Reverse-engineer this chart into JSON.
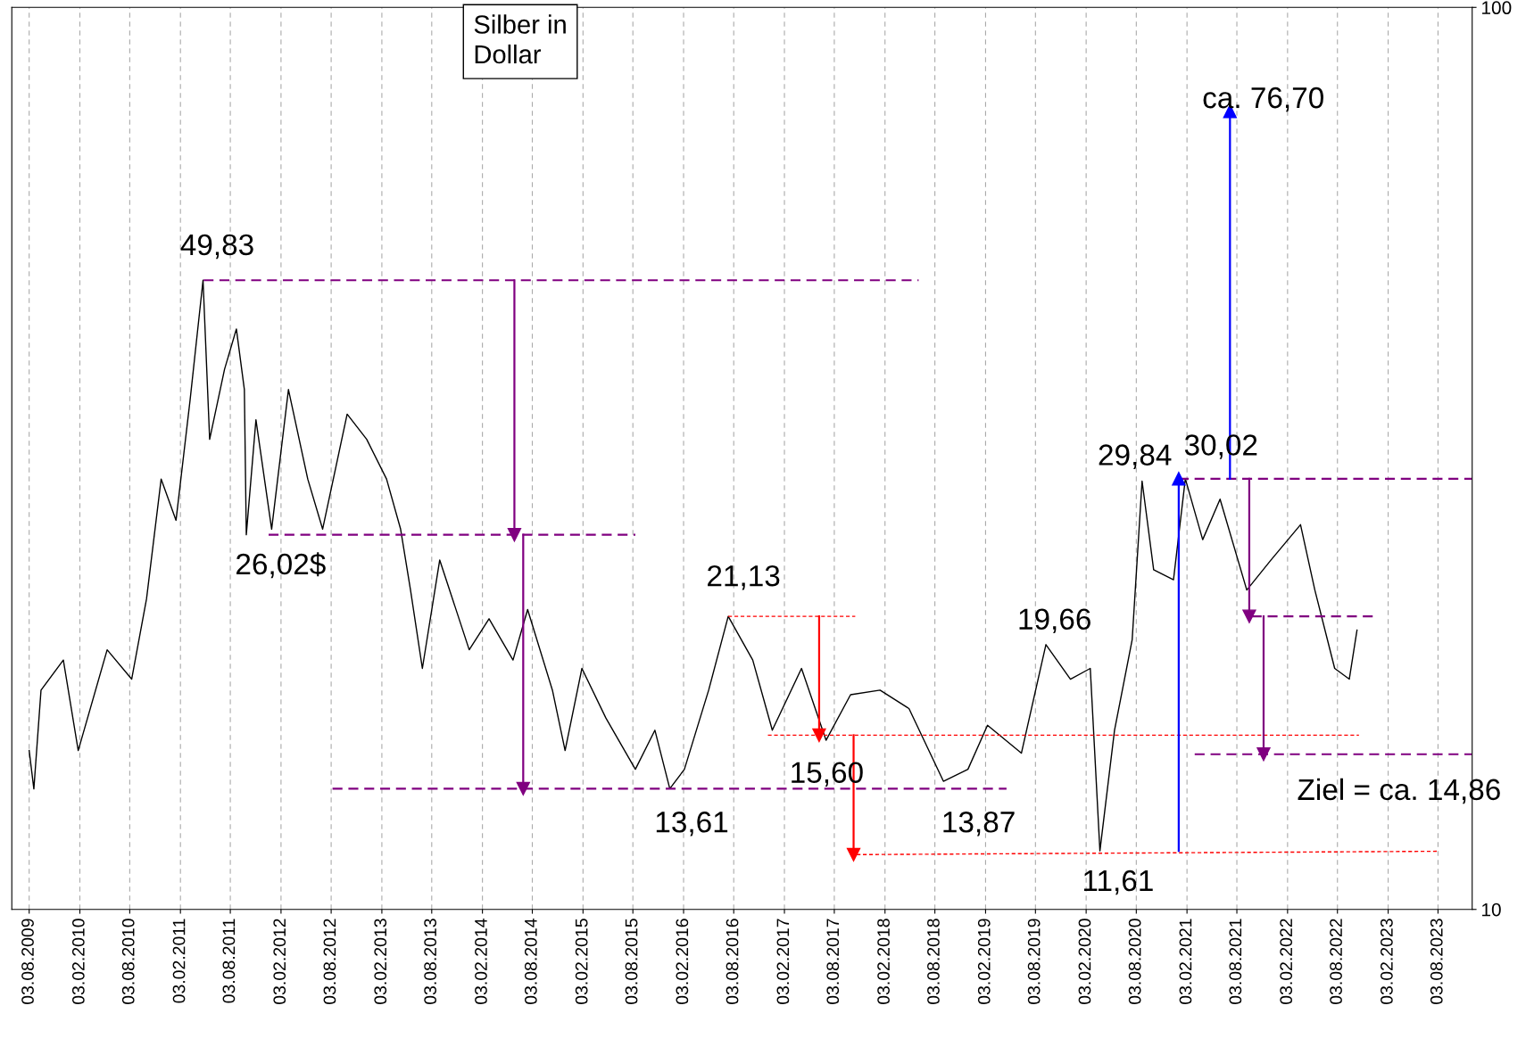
{
  "chart_data": {
    "type": "line",
    "title": "Silber in\nDollar",
    "log": "y",
    "grid": "x",
    "xlim": [
      "2009-06-01",
      "2023-12-05"
    ],
    "ylim": [
      10,
      100
    ],
    "yticks": [
      10,
      100
    ],
    "xticks": [
      {
        "value": "2009-08-03",
        "label": "03.08.2009"
      },
      {
        "value": "2010-02-03",
        "label": "03.02.2010"
      },
      {
        "value": "2010-08-03",
        "label": "03.08.2010"
      },
      {
        "value": "2011-02-03",
        "label": "03.02.2011"
      },
      {
        "value": "2011-08-03",
        "label": "03.08.2011"
      },
      {
        "value": "2012-02-03",
        "label": "03.02.2012"
      },
      {
        "value": "2012-08-03",
        "label": "03.08.2012"
      },
      {
        "value": "2013-02-03",
        "label": "03.02.2013"
      },
      {
        "value": "2013-08-03",
        "label": "03.08.2013"
      },
      {
        "value": "2014-02-03",
        "label": "03.02.2014"
      },
      {
        "value": "2014-08-03",
        "label": "03.08.2014"
      },
      {
        "value": "2015-02-03",
        "label": "03.02.2015"
      },
      {
        "value": "2015-08-03",
        "label": "03.08.2015"
      },
      {
        "value": "2016-02-03",
        "label": "03.02.2016"
      },
      {
        "value": "2016-08-03",
        "label": "03.08.2016"
      },
      {
        "value": "2017-02-03",
        "label": "03.02.2017"
      },
      {
        "value": "2017-08-03",
        "label": "03.08.2017"
      },
      {
        "value": "2018-02-03",
        "label": "03.02.2018"
      },
      {
        "value": "2018-08-03",
        "label": "03.08.2018"
      },
      {
        "value": "2019-02-03",
        "label": "03.02.2019"
      },
      {
        "value": "2019-08-03",
        "label": "03.08.2019"
      },
      {
        "value": "2020-02-03",
        "label": "03.02.2020"
      },
      {
        "value": "2020-08-03",
        "label": "03.08.2020"
      },
      {
        "value": "2021-02-03",
        "label": "03.02.2021"
      },
      {
        "value": "2021-08-03",
        "label": "03.08.2021"
      },
      {
        "value": "2022-02-03",
        "label": "03.02.2022"
      },
      {
        "value": "2022-08-03",
        "label": "03.08.2022"
      },
      {
        "value": "2023-02-03",
        "label": "03.02.2023"
      },
      {
        "value": "2023-08-03",
        "label": "03.08.2023"
      }
    ],
    "series": [
      {
        "color": "#000000",
        "line_style": "solid",
        "x": [
          "2009-08-03",
          "2009-08-20",
          "2009-09-15",
          "2009-12-05",
          "2010-01-28",
          "2010-05-13",
          "2010-08-10",
          "2010-10-03",
          "2010-11-25",
          "2011-01-18",
          "2011-03-10",
          "2011-04-26",
          "2011-05-20",
          "2011-07-13",
          "2011-08-25",
          "2011-09-23",
          "2011-09-30",
          "2011-11-04",
          "2011-12-31",
          "2012-03-01",
          "2012-05-10",
          "2012-07-03",
          "2012-09-30",
          "2012-12-10",
          "2013-02-20",
          "2013-04-12",
          "2013-05-18",
          "2013-06-30",
          "2013-09-01",
          "2013-12-17",
          "2014-02-27",
          "2014-05-25",
          "2014-07-17",
          "2014-10-15",
          "2014-11-30",
          "2015-01-30",
          "2015-04-27",
          "2015-08-12",
          "2015-10-22",
          "2015-12-15",
          "2016-02-06",
          "2016-05-04",
          "2016-07-14",
          "2016-10-11",
          "2016-12-21",
          "2017-04-06",
          "2017-07-04",
          "2017-10-01",
          "2018-01-16",
          "2018-05-01",
          "2018-09-03",
          "2018-12-01",
          "2019-02-10",
          "2019-06-13",
          "2019-09-10",
          "2019-12-08",
          "2020-02-18",
          "2020-03-24",
          "2020-05-16",
          "2020-07-19",
          "2020-08-24",
          "2020-10-05",
          "2020-12-16",
          "2021-01-28",
          "2021-04-01",
          "2021-06-03",
          "2021-09-08",
          "2021-12-05",
          "2022-03-22",
          "2022-05-13",
          "2022-07-24",
          "2022-09-15",
          "2022-10-13"
        ],
        "values": [
          15.0,
          13.6,
          17.5,
          18.9,
          15.0,
          19.4,
          18.0,
          22.1,
          30.0,
          27.0,
          36.7,
          49.83,
          33.2,
          39.7,
          44.0,
          37.7,
          26.02,
          34.9,
          26.4,
          37.7,
          30.0,
          26.4,
          35.4,
          33.2,
          30.0,
          26.4,
          22.6,
          18.5,
          24.4,
          19.4,
          21.0,
          18.9,
          21.5,
          17.5,
          15.0,
          18.5,
          16.3,
          14.3,
          15.8,
          13.61,
          14.3,
          17.5,
          21.13,
          18.9,
          15.8,
          18.5,
          15.4,
          17.3,
          17.5,
          16.7,
          13.87,
          14.3,
          16.0,
          14.9,
          19.66,
          18.0,
          18.5,
          11.61,
          15.8,
          19.9,
          29.84,
          23.8,
          23.2,
          30.02,
          25.7,
          28.5,
          22.6,
          24.4,
          26.7,
          22.6,
          18.5,
          18.0,
          20.4
        ]
      },
      {
        "color": "#800080",
        "line_style": "dashed",
        "x": [
          "2011-04-28",
          "2018-06-05"
        ],
        "values": [
          49.83,
          49.83
        ]
      },
      {
        "color": "#800080",
        "line_style": "dashed",
        "x": [
          "2011-12-20",
          "2015-08-12"
        ],
        "values": [
          26.02,
          26.02
        ]
      },
      {
        "color": "#800080",
        "line_style": "dashed",
        "x": [
          "2012-08-08",
          "2019-04-20"
        ],
        "values": [
          13.61,
          13.61
        ]
      },
      {
        "color": "#800080",
        "line_style": "dashed",
        "x": [
          "2021-01-04",
          "2023-12-05"
        ],
        "values": [
          30.02,
          30.02
        ]
      },
      {
        "color": "#800080",
        "line_style": "dashed",
        "x": [
          "2021-09-26",
          "2022-12-13"
        ],
        "values": [
          21.13,
          21.13
        ]
      },
      {
        "color": "#800080",
        "line_style": "dashed",
        "x": [
          "2021-03-03",
          "2023-12-05"
        ],
        "values": [
          14.86,
          14.86
        ]
      },
      {
        "color": "#ff0000",
        "line_style": "dotted",
        "x": [
          "2016-07-14",
          "2017-10-18"
        ],
        "values": [
          21.13,
          21.13
        ]
      },
      {
        "color": "#ff0000",
        "line_style": "dotted",
        "x": [
          "2016-12-05",
          "2022-10-20"
        ],
        "values": [
          15.6,
          15.6
        ]
      },
      {
        "color": "#ff0000",
        "line_style": "dotted",
        "x": [
          "2017-10-01",
          "2023-08-03"
        ],
        "values": [
          11.5,
          11.6
        ]
      },
      {
        "color": "#800080",
        "line_style": "solid",
        "marker": "triangle",
        "x": [
          "2014-05-30",
          "2014-05-30"
        ],
        "values": [
          49.83,
          26.02
        ]
      },
      {
        "color": "#800080",
        "line_style": "solid",
        "marker": "triangle",
        "x": [
          "2014-07-01",
          "2014-07-01"
        ],
        "values": [
          26.02,
          13.61
        ]
      },
      {
        "color": "#ff0000",
        "line_style": "solid",
        "marker": "triangle",
        "x": [
          "2017-06-09",
          "2017-06-09"
        ],
        "values": [
          21.13,
          15.6
        ]
      },
      {
        "color": "#ff0000",
        "line_style": "solid",
        "marker": "triangle",
        "x": [
          "2017-10-12",
          "2017-10-12"
        ],
        "values": [
          15.6,
          11.5
        ]
      },
      {
        "color": "#0000ff",
        "line_style": "solid",
        "marker": "triangle",
        "x": [
          "2021-01-04",
          "2021-01-04"
        ],
        "values": [
          11.61,
          30.02
        ]
      },
      {
        "color": "#0000ff",
        "line_style": "solid",
        "marker": "triangle",
        "x": [
          "2021-07-09",
          "2021-07-09"
        ],
        "values": [
          30.02,
          76.7
        ]
      },
      {
        "color": "#800080",
        "line_style": "solid",
        "marker": "triangle",
        "x": [
          "2021-09-17",
          "2021-09-17"
        ],
        "values": [
          30.02,
          21.13
        ]
      },
      {
        "color": "#800080",
        "line_style": "solid",
        "marker": "triangle",
        "x": [
          "2021-11-08",
          "2021-11-08"
        ],
        "values": [
          21.13,
          14.86
        ]
      }
    ],
    "annotations": [
      "49,83",
      "26,02$",
      "21,13",
      "15,60",
      "13,61",
      "13,87",
      "19,66",
      "11,61",
      "29,84",
      "30,02",
      "ca. 76,70",
      "Ziel = ca. 14,86"
    ]
  }
}
